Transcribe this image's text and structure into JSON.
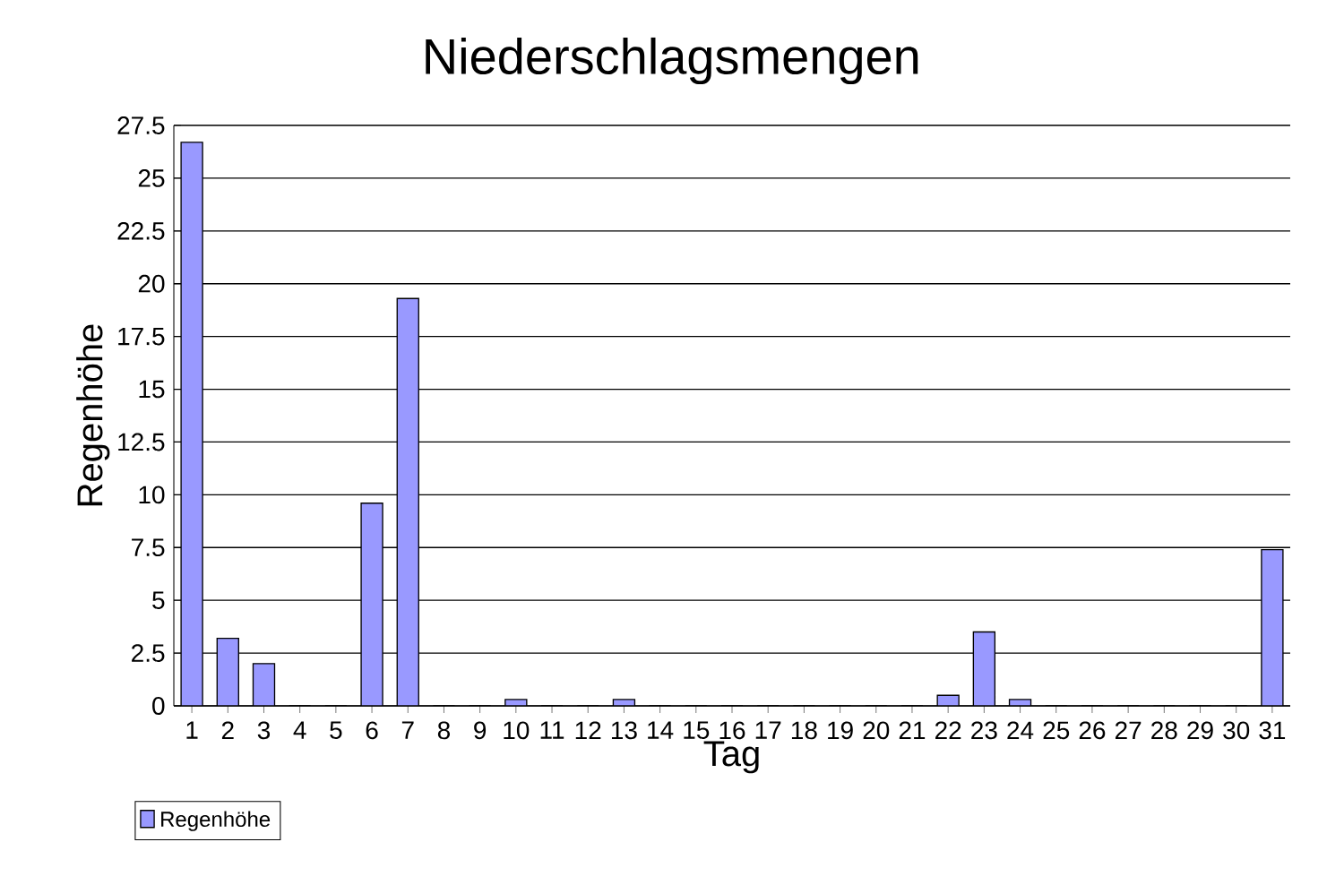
{
  "chart_data": {
    "type": "bar",
    "title": "Niederschlagsmengen",
    "xlabel": "Tag",
    "ylabel": "Regenhöhe",
    "categories": [
      "1",
      "2",
      "3",
      "4",
      "5",
      "6",
      "7",
      "8",
      "9",
      "10",
      "11",
      "12",
      "13",
      "14",
      "15",
      "16",
      "17",
      "18",
      "19",
      "20",
      "21",
      "22",
      "23",
      "24",
      "25",
      "26",
      "27",
      "28",
      "29",
      "30",
      "31"
    ],
    "series": [
      {
        "name": "Regenhöhe",
        "color": "#9999ff",
        "values": [
          26.7,
          3.2,
          2.0,
          0,
          0,
          9.6,
          19.3,
          0,
          0,
          0.3,
          0,
          0,
          0.3,
          0,
          0,
          0,
          0,
          0,
          0,
          0,
          0,
          0.5,
          3.5,
          0.3,
          0,
          0,
          0,
          0,
          0,
          0,
          7.4
        ]
      }
    ],
    "ylim": [
      0,
      27.5
    ],
    "yticks": [
      0,
      2.5,
      5,
      7.5,
      10,
      12.5,
      15,
      17.5,
      20,
      22.5,
      25,
      27.5
    ],
    "grid": "y",
    "legend": "bottom left"
  }
}
